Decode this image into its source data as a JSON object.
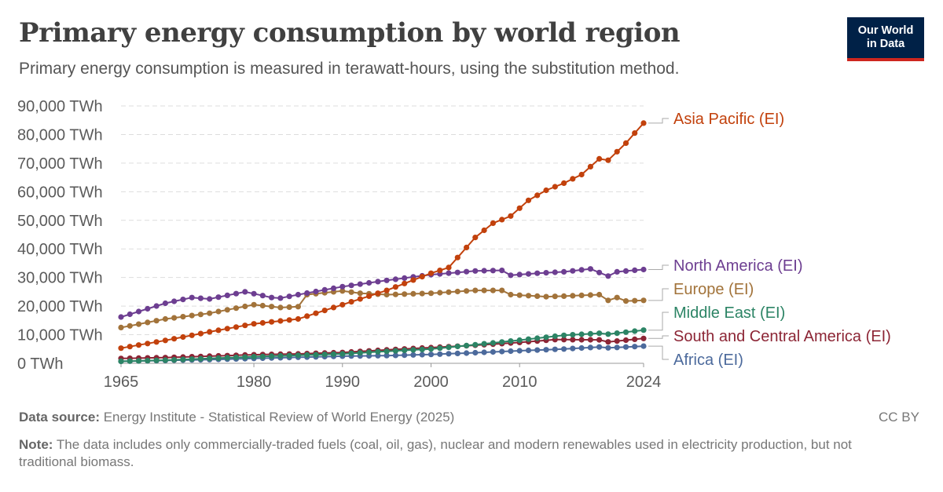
{
  "header": {
    "title": "Primary energy consumption by world region",
    "subtitle": "Primary energy consumption is measured in terawatt-hours, using the substitution method.",
    "logo_line1": "Our World",
    "logo_line2": "in Data"
  },
  "footer": {
    "source_label": "Data source:",
    "source_text": "Energy Institute - Statistical Review of World Energy (2025)",
    "license": "CC BY",
    "note_label": "Note:",
    "note_text": "The data includes only commercially-traded fuels (coal, oil, gas), nuclear and modern renewables used in electricity production, but not traditional biomass."
  },
  "chart_data": {
    "type": "line",
    "title": "Primary energy consumption by world region",
    "ylabel": "",
    "xlabel": "",
    "ylim": [
      0,
      90000
    ],
    "xlim": [
      1965,
      2024
    ],
    "y_ticks": [
      0,
      10000,
      20000,
      30000,
      40000,
      50000,
      60000,
      70000,
      80000,
      90000
    ],
    "y_tick_labels": [
      "0 TWh",
      "10,000 TWh",
      "20,000 TWh",
      "30,000 TWh",
      "40,000 TWh",
      "50,000 TWh",
      "60,000 TWh",
      "70,000 TWh",
      "80,000 TWh",
      "90,000 TWh"
    ],
    "x_ticks": [
      1965,
      1980,
      1990,
      2000,
      2010,
      2024
    ],
    "x_tick_labels": [
      "1965",
      "1980",
      "1990",
      "2000",
      "2010",
      "2024"
    ],
    "grid": "horizontal dashed",
    "legend": "right, labels at line ends",
    "series": [
      {
        "name": "Asia Pacific (EI)",
        "color": "#c2410c",
        "keypoints": [
          [
            1965,
            5300
          ],
          [
            1970,
            8000
          ],
          [
            1975,
            11000
          ],
          [
            1980,
            13800
          ],
          [
            1985,
            15500
          ],
          [
            1990,
            20500
          ],
          [
            1995,
            25500
          ],
          [
            2000,
            31500
          ],
          [
            2002,
            33500
          ],
          [
            2003,
            37000
          ],
          [
            2004,
            40500
          ],
          [
            2005,
            44000
          ],
          [
            2007,
            49000
          ],
          [
            2009,
            51500
          ],
          [
            2011,
            57000
          ],
          [
            2013,
            60500
          ],
          [
            2015,
            63000
          ],
          [
            2017,
            66000
          ],
          [
            2019,
            71500
          ],
          [
            2020,
            71000
          ],
          [
            2022,
            77000
          ],
          [
            2024,
            84000
          ]
        ]
      },
      {
        "name": "North America (EI)",
        "color": "#6d3e91",
        "keypoints": [
          [
            1965,
            16200
          ],
          [
            1970,
            21000
          ],
          [
            1973,
            23000
          ],
          [
            1975,
            22500
          ],
          [
            1979,
            25000
          ],
          [
            1982,
            23000
          ],
          [
            1983,
            22800
          ],
          [
            1985,
            24000
          ],
          [
            1990,
            26800
          ],
          [
            1995,
            29000
          ],
          [
            2000,
            31000
          ],
          [
            2005,
            32300
          ],
          [
            2008,
            32500
          ],
          [
            2009,
            30800
          ],
          [
            2012,
            31500
          ],
          [
            2015,
            32000
          ],
          [
            2018,
            33000
          ],
          [
            2020,
            30500
          ],
          [
            2021,
            32000
          ],
          [
            2024,
            32800
          ]
        ]
      },
      {
        "name": "Europe (EI)",
        "color": "#a2733a",
        "keypoints": [
          [
            1965,
            12500
          ],
          [
            1970,
            15500
          ],
          [
            1975,
            17500
          ],
          [
            1980,
            20500
          ],
          [
            1983,
            19500
          ],
          [
            1985,
            19800
          ],
          [
            1986,
            24000
          ],
          [
            1989,
            25000
          ],
          [
            1990,
            25300
          ],
          [
            1992,
            24500
          ],
          [
            1995,
            24000
          ],
          [
            2000,
            24500
          ],
          [
            2005,
            25500
          ],
          [
            2008,
            25500
          ],
          [
            2009,
            24000
          ],
          [
            2013,
            23300
          ],
          [
            2015,
            23500
          ],
          [
            2019,
            24000
          ],
          [
            2020,
            22000
          ],
          [
            2021,
            23000
          ],
          [
            2022,
            21800
          ],
          [
            2024,
            22000
          ]
        ]
      },
      {
        "name": "Middle East (EI)",
        "color": "#2c8465",
        "keypoints": [
          [
            1965,
            700
          ],
          [
            1970,
            1100
          ],
          [
            1975,
            1700
          ],
          [
            1980,
            2300
          ],
          [
            1985,
            2800
          ],
          [
            1990,
            3300
          ],
          [
            1995,
            4200
          ],
          [
            2000,
            5000
          ],
          [
            2005,
            6500
          ],
          [
            2010,
            8100
          ],
          [
            2015,
            9800
          ],
          [
            2019,
            10500
          ],
          [
            2020,
            10200
          ],
          [
            2024,
            11600
          ]
        ]
      },
      {
        "name": "South and Central America (EI)",
        "color": "#8c2535",
        "keypoints": [
          [
            1965,
            1700
          ],
          [
            1970,
            2000
          ],
          [
            1975,
            2500
          ],
          [
            1980,
            3000
          ],
          [
            1985,
            3300
          ],
          [
            1990,
            3800
          ],
          [
            1995,
            4700
          ],
          [
            2000,
            5500
          ],
          [
            2005,
            6300
          ],
          [
            2010,
            7300
          ],
          [
            2014,
            8300
          ],
          [
            2019,
            8200
          ],
          [
            2020,
            7500
          ],
          [
            2024,
            8700
          ]
        ]
      },
      {
        "name": "Africa (EI)",
        "color": "#4c6a9c",
        "keypoints": [
          [
            1965,
            700
          ],
          [
            1970,
            1000
          ],
          [
            1975,
            1300
          ],
          [
            1980,
            1700
          ],
          [
            1985,
            2100
          ],
          [
            1990,
            2500
          ],
          [
            1995,
            2700
          ],
          [
            2000,
            3100
          ],
          [
            2005,
            3700
          ],
          [
            2010,
            4400
          ],
          [
            2015,
            5000
          ],
          [
            2019,
            5700
          ],
          [
            2020,
            5400
          ],
          [
            2024,
            6000
          ]
        ]
      }
    ]
  }
}
